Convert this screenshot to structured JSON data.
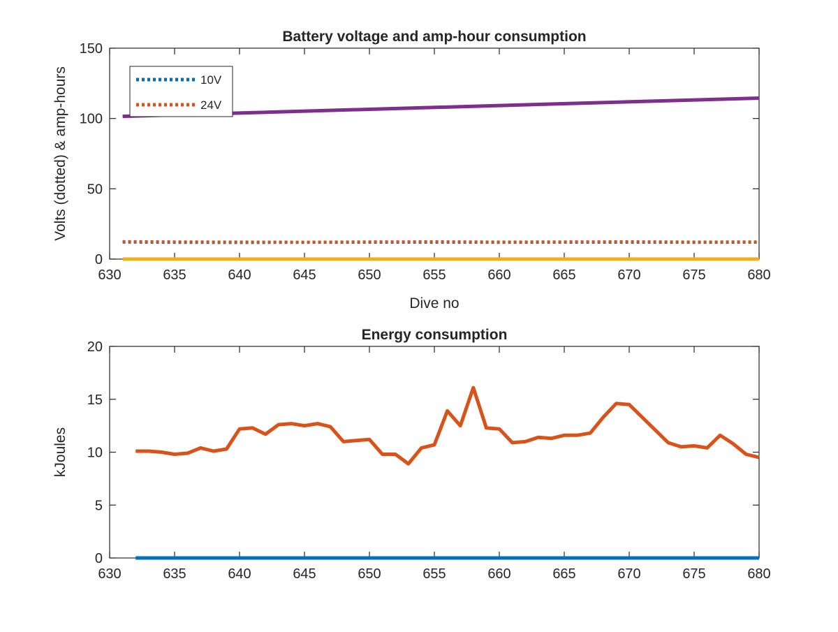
{
  "chart_data": [
    {
      "type": "line",
      "title": "Battery voltage and amp-hour consumption",
      "xlabel": "Dive no",
      "ylabel": "Volts (dotted) & amp-hours",
      "xlim": [
        630,
        680
      ],
      "ylim": [
        0,
        150
      ],
      "xticks": [
        "630",
        "635",
        "640",
        "645",
        "650",
        "655",
        "660",
        "665",
        "670",
        "675",
        "680"
      ],
      "yticks": [
        "0",
        "50",
        "100",
        "150"
      ],
      "grid": false,
      "legend": "top-left",
      "series": [
        {
          "name": "10V",
          "color": "#0072BD",
          "style": "dotted",
          "x": [
            631,
            635,
            640,
            645,
            650,
            655,
            660,
            665,
            670,
            675,
            680
          ],
          "values": [
            12,
            11.8,
            11.7,
            11.8,
            11.9,
            11.9,
            11.8,
            11.9,
            11.9,
            11.8,
            11.9
          ]
        },
        {
          "name": "24V",
          "color": "#D95319",
          "style": "dotted",
          "x": [
            631,
            635,
            640,
            645,
            650,
            655,
            660,
            665,
            670,
            675,
            680
          ],
          "values": [
            12.5,
            12.3,
            12.2,
            12.1,
            12.3,
            12.4,
            12.2,
            12.3,
            12.4,
            12.2,
            12.3
          ]
        },
        {
          "color": "#7E2F8E",
          "style": "solid",
          "x": [
            631,
            680
          ],
          "values": [
            101.5,
            114.5
          ]
        },
        {
          "color": "#EDB120",
          "style": "solid",
          "x": [
            631,
            680
          ],
          "values": [
            0,
            0
          ]
        }
      ]
    },
    {
      "type": "line",
      "title": "Energy consumption",
      "xlabel": "",
      "ylabel": "kJoules",
      "xlim": [
        630,
        680
      ],
      "ylim": [
        0,
        20
      ],
      "xticks": [
        "630",
        "635",
        "640",
        "645",
        "650",
        "655",
        "660",
        "665",
        "670",
        "675",
        "680"
      ],
      "yticks": [
        "0",
        "5",
        "10",
        "15",
        "20"
      ],
      "grid": false,
      "series": [
        {
          "color": "#0072BD",
          "style": "solid",
          "x": [
            632,
            680
          ],
          "values": [
            0,
            0
          ]
        },
        {
          "color": "#D95319",
          "style": "solid",
          "x": [
            632,
            633,
            634,
            635,
            636,
            637,
            638,
            639,
            640,
            641,
            642,
            643,
            644,
            645,
            646,
            647,
            648,
            649,
            650,
            651,
            652,
            653,
            654,
            655,
            656,
            657,
            658,
            659,
            660,
            661,
            662,
            663,
            664,
            665,
            666,
            667,
            668,
            669,
            670,
            671,
            672,
            673,
            674,
            675,
            676,
            677,
            678,
            679,
            680
          ],
          "values": [
            10.1,
            10.1,
            10.0,
            9.8,
            9.9,
            10.4,
            10.1,
            10.3,
            12.2,
            12.3,
            11.7,
            12.6,
            12.7,
            12.5,
            12.7,
            12.4,
            11.0,
            11.1,
            11.2,
            9.8,
            9.8,
            8.9,
            10.4,
            10.7,
            13.9,
            12.5,
            16.1,
            12.3,
            12.2,
            10.9,
            11.0,
            11.4,
            11.3,
            11.6,
            11.6,
            11.8,
            13.3,
            14.6,
            14.5,
            13.3,
            12.1,
            10.9,
            10.5,
            10.6,
            10.4,
            11.6,
            10.8,
            9.8,
            9.5
          ]
        }
      ]
    }
  ]
}
